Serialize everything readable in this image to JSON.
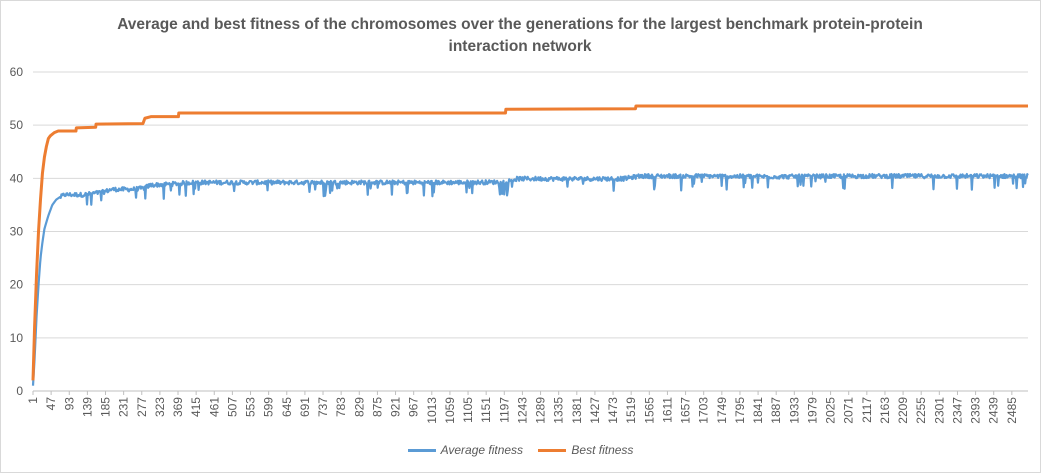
{
  "chart_data": {
    "type": "line",
    "title": "Average and best fitness of the chromosomes over the generations for the largest benchmark protein-protein interaction network",
    "xlabel": "",
    "ylabel": "",
    "ylim": [
      0,
      60
    ],
    "yticks": [
      0,
      10,
      20,
      30,
      40,
      50,
      60
    ],
    "xlim": [
      1,
      2526
    ],
    "x_tick_step": 46,
    "x_tick_labels": [
      "1",
      "47",
      "93",
      "139",
      "185",
      "231",
      "277",
      "323",
      "369",
      "415",
      "461",
      "507",
      "553",
      "599",
      "645",
      "691",
      "737",
      "783",
      "829",
      "875",
      "921",
      "967",
      "1013",
      "1059",
      "1105",
      "1151",
      "1197",
      "1243",
      "1289",
      "1335",
      "1381",
      "1427",
      "1473",
      "1519",
      "1565",
      "1611",
      "1657",
      "1703",
      "1749",
      "1795",
      "1841",
      "1887",
      "1933",
      "1979",
      "2025",
      "2071",
      "2117",
      "2163",
      "2209",
      "2255",
      "2301",
      "2347",
      "2393",
      "2439",
      "2485"
    ],
    "grid": true,
    "legend_position": "bottom",
    "series": [
      {
        "name": "Average fitness",
        "color": "#5b9bd5",
        "points": [
          [
            1,
            1
          ],
          [
            5,
            6
          ],
          [
            10,
            14
          ],
          [
            15,
            20
          ],
          [
            20,
            25
          ],
          [
            25,
            28
          ],
          [
            30,
            30.5
          ],
          [
            40,
            33
          ],
          [
            50,
            35
          ],
          [
            60,
            36
          ],
          [
            70,
            36.5
          ],
          [
            80,
            37
          ],
          [
            100,
            37
          ],
          [
            130,
            37
          ],
          [
            150,
            37.2
          ],
          [
            180,
            37.5
          ],
          [
            200,
            38
          ],
          [
            250,
            38
          ],
          [
            280,
            38.2
          ],
          [
            300,
            38.8
          ],
          [
            350,
            39
          ],
          [
            400,
            39.3
          ],
          [
            500,
            39.3
          ],
          [
            600,
            39.3
          ],
          [
            700,
            39.3
          ],
          [
            800,
            39.3
          ],
          [
            900,
            39.3
          ],
          [
            1000,
            39.3
          ],
          [
            1100,
            39.3
          ],
          [
            1200,
            39.4
          ],
          [
            1230,
            40
          ],
          [
            1300,
            40
          ],
          [
            1400,
            40
          ],
          [
            1500,
            40
          ],
          [
            1540,
            40.5
          ],
          [
            1700,
            40.5
          ],
          [
            1900,
            40.4
          ],
          [
            2100,
            40.5
          ],
          [
            2300,
            40.5
          ],
          [
            2526,
            40.5
          ]
        ],
        "noise": 0.8
      },
      {
        "name": "Best fitness",
        "color": "#ed7d31",
        "points": [
          [
            1,
            2
          ],
          [
            5,
            12
          ],
          [
            10,
            22
          ],
          [
            15,
            30
          ],
          [
            20,
            36
          ],
          [
            25,
            41
          ],
          [
            30,
            44
          ],
          [
            35,
            46
          ],
          [
            40,
            47.5
          ],
          [
            45,
            48
          ],
          [
            55,
            48.6
          ],
          [
            65,
            48.9
          ],
          [
            110,
            48.9
          ],
          [
            111,
            49.5
          ],
          [
            160,
            49.6
          ],
          [
            161,
            50.2
          ],
          [
            280,
            50.3
          ],
          [
            285,
            51.3
          ],
          [
            300,
            51.6
          ],
          [
            370,
            51.6
          ],
          [
            371,
            52.3
          ],
          [
            1200,
            52.3
          ],
          [
            1201,
            53
          ],
          [
            1530,
            53.1
          ],
          [
            1531,
            53.6
          ],
          [
            2526,
            53.6
          ]
        ]
      }
    ]
  }
}
